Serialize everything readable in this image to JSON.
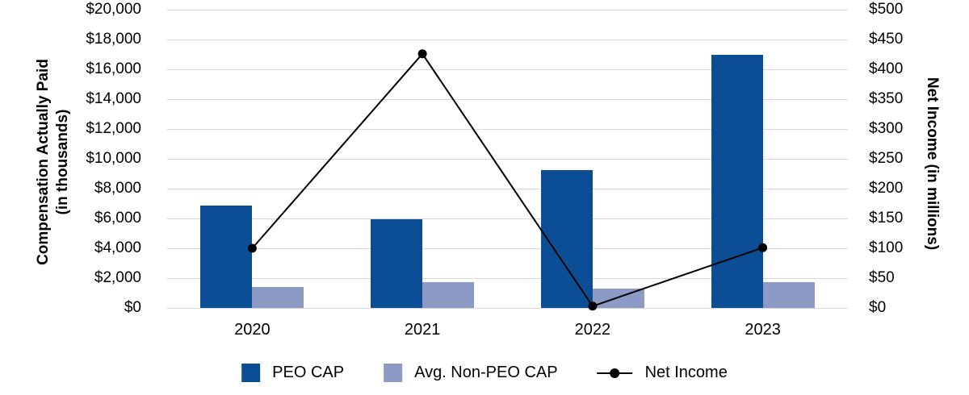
{
  "chart_data": {
    "type": "combo-bar-line",
    "categories": [
      "2020",
      "2021",
      "2022",
      "2023"
    ],
    "bar_series": [
      {
        "name": "PEO CAP",
        "axis": "left",
        "color": "#0C4E95",
        "values": [
          6850,
          5950,
          9250,
          16950
        ]
      },
      {
        "name": "Avg. Non-PEO CAP",
        "axis": "left",
        "color": "#8D9AC6",
        "values": [
          1400,
          1750,
          1300,
          1750
        ]
      }
    ],
    "line_series": [
      {
        "name": "Net Income",
        "axis": "right",
        "color": "#000000",
        "marker": "filled-circle",
        "values": [
          100,
          426,
          3,
          101
        ]
      }
    ],
    "left_axis": {
      "title_line1": "Compensation Actually Paid",
      "title_line2": "(in thousands)",
      "min": 0,
      "max": 20000,
      "step": 2000,
      "tick_labels": [
        "$0",
        "$2,000",
        "$4,000",
        "$6,000",
        "$8,000",
        "$10,000",
        "$12,000",
        "$14,000",
        "$16,000",
        "$18,000",
        "$20,000"
      ]
    },
    "right_axis": {
      "title": "Net Income (in millions)",
      "min": 0,
      "max": 500,
      "step": 50,
      "tick_labels": [
        "$0",
        "$50",
        "$100",
        "$150",
        "$200",
        "$250",
        "$300",
        "$350",
        "$400",
        "$450",
        "$500"
      ]
    },
    "grid": {
      "horizontal": true,
      "vertical": false,
      "color": "#D9D9D9"
    },
    "legend_position": "bottom",
    "title": ""
  }
}
